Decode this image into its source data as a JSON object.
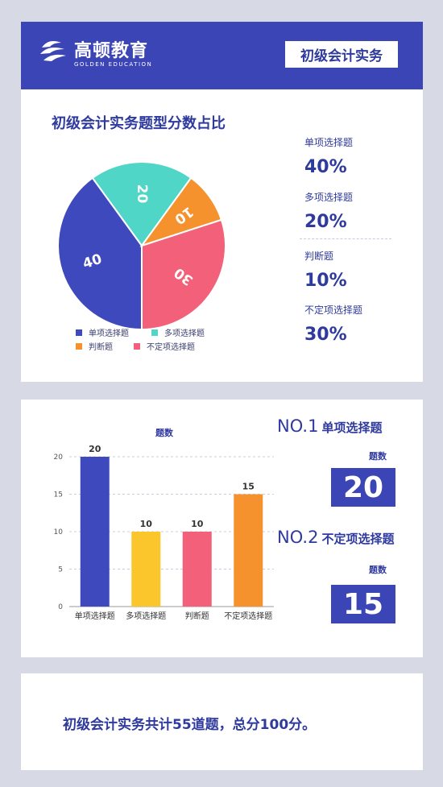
{
  "header": {
    "brand_cn": "高顿教育",
    "brand_en": "GOLDEN EDUCATION",
    "subject": "初级会计实务"
  },
  "pie_section": {
    "title": "初级会计实务题型分数占比",
    "stats": [
      {
        "label": "单项选择题",
        "value": "40%"
      },
      {
        "label": "多项选择题",
        "value": "20%"
      },
      {
        "label": "判断题",
        "value": "10%"
      },
      {
        "label": "不定项选择题",
        "value": "30%"
      }
    ]
  },
  "bar_section": {
    "rank1": {
      "no": "NO.1",
      "name": "单项选择题",
      "count_label": "题数",
      "count": "20"
    },
    "rank2": {
      "no": "NO.2",
      "name": "不定项选择题",
      "count_label": "题数",
      "count": "15"
    }
  },
  "summary": "初级会计实务共计55道题，总分100分。",
  "colors": {
    "blue": "#3e49bd",
    "teal": "#4fd6c6",
    "orange": "#f5922e",
    "pink": "#f26179",
    "yellow": "#fbc62c",
    "dark": "#3b45b5"
  },
  "chart_data": [
    {
      "type": "pie",
      "categories": [
        "单项选择题",
        "多项选择题",
        "判断题",
        "不定项选择题"
      ],
      "values": [
        40,
        20,
        10,
        30
      ],
      "colors": [
        "#3e49bd",
        "#4fd6c6",
        "#f5922e",
        "#f26179"
      ],
      "legend": "bottom"
    },
    {
      "type": "bar",
      "title": "题数",
      "categories": [
        "单项选择题",
        "多项选择题",
        "判断题",
        "不定项选择题"
      ],
      "values": [
        20,
        10,
        10,
        15
      ],
      "colors": [
        "#3e49bd",
        "#fbc62c",
        "#f26179",
        "#f5922e"
      ],
      "ylim": [
        0,
        20
      ],
      "yticks": [
        0,
        5,
        10,
        15,
        20
      ],
      "grid": true
    }
  ]
}
